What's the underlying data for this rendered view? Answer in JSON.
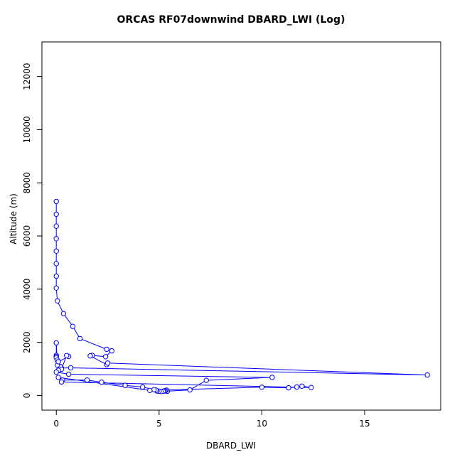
{
  "chart_data": {
    "type": "line",
    "title": "ORCAS RF07downwind DBARD_LWI (Log)",
    "xlabel": "DBARD_LWI",
    "ylabel": "Altitude (m)",
    "xlim": [
      -0.7,
      18.7
    ],
    "ylim": [
      -550,
      13300
    ],
    "xticks": [
      0,
      5,
      10,
      15
    ],
    "yticks": [
      0,
      2000,
      4000,
      6000,
      8000,
      10000,
      12000
    ],
    "grid": false,
    "series": [
      {
        "color": "#0000ff",
        "marker": "circle",
        "points": [
          [
            0.0,
            7300
          ],
          [
            0.0,
            6820
          ],
          [
            0.0,
            6370
          ],
          [
            0.0,
            5900
          ],
          [
            0.0,
            5430
          ],
          [
            0.0,
            4960
          ],
          [
            0.0,
            4490
          ],
          [
            0.0,
            4040
          ],
          [
            0.05,
            3560
          ],
          [
            0.35,
            3080
          ],
          [
            0.8,
            2600
          ],
          [
            1.15,
            2140
          ],
          [
            2.45,
            1740
          ],
          [
            2.7,
            1680
          ],
          [
            2.4,
            1460
          ],
          [
            1.75,
            1510
          ],
          [
            1.65,
            1490
          ],
          [
            2.45,
            1160
          ],
          [
            2.5,
            1220
          ],
          [
            18.05,
            770
          ],
          [
            0.7,
            1040
          ],
          [
            0.25,
            1030
          ],
          [
            0.2,
            1090
          ],
          [
            0.05,
            1140
          ],
          [
            0.0,
            1980
          ],
          [
            0.0,
            1510
          ],
          [
            0.0,
            1470
          ],
          [
            0.0,
            1420
          ],
          [
            0.05,
            1330
          ],
          [
            0.1,
            1270
          ],
          [
            0.6,
            1470
          ],
          [
            0.5,
            1500
          ],
          [
            0.25,
            990
          ],
          [
            0.1,
            950
          ],
          [
            0.0,
            880
          ],
          [
            0.6,
            800
          ],
          [
            10.5,
            680
          ],
          [
            7.3,
            570
          ],
          [
            6.5,
            210
          ],
          [
            5.4,
            160
          ],
          [
            5.35,
            200
          ],
          [
            5.3,
            180
          ],
          [
            5.25,
            170
          ],
          [
            5.2,
            160
          ],
          [
            5.1,
            150
          ],
          [
            5.0,
            160
          ],
          [
            4.9,
            170
          ],
          [
            4.85,
            200
          ],
          [
            4.75,
            220
          ],
          [
            4.2,
            320
          ],
          [
            3.35,
            380
          ],
          [
            2.2,
            500
          ],
          [
            1.5,
            580
          ],
          [
            0.3,
            580
          ],
          [
            0.25,
            510
          ],
          [
            12.4,
            300
          ],
          [
            11.95,
            350
          ],
          [
            11.7,
            320
          ],
          [
            11.3,
            290
          ],
          [
            10.0,
            310
          ],
          [
            4.55,
            190
          ],
          [
            0.1,
            680
          ]
        ]
      }
    ]
  }
}
